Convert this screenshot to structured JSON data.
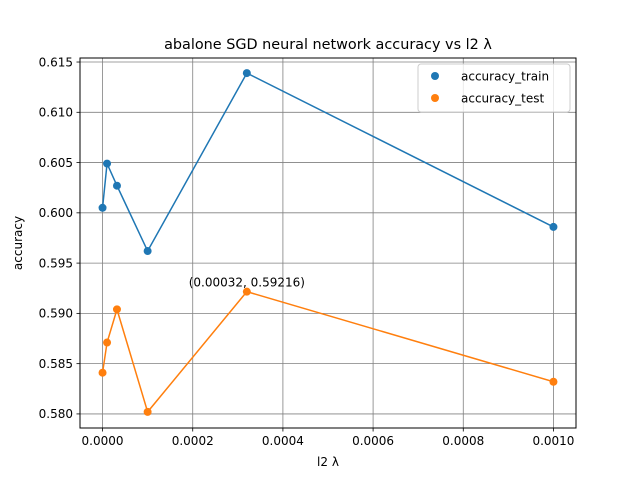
{
  "chart_data": {
    "type": "scatter",
    "title": "abalone SGD neural network accuracy vs l2 λ",
    "xlabel": "l2 λ",
    "ylabel": "accuracy",
    "xlim": [
      -5e-05,
      0.00105
    ],
    "ylim": [
      0.5786,
      0.6154
    ],
    "x_ticks": [
      0.0,
      0.0002,
      0.0004,
      0.0006,
      0.0008,
      0.001
    ],
    "x_tick_labels": [
      "0.0000",
      "0.0002",
      "0.0004",
      "0.0006",
      "0.0008",
      "0.0010"
    ],
    "y_ticks": [
      0.58,
      0.585,
      0.59,
      0.595,
      0.6,
      0.605,
      0.61,
      0.615
    ],
    "y_tick_labels": [
      "0.580",
      "0.585",
      "0.590",
      "0.595",
      "0.600",
      "0.605",
      "0.610",
      "0.615"
    ],
    "grid": true,
    "legend_position": "top-right",
    "series": [
      {
        "name": "accuracy_train",
        "color": "#1f77b4",
        "x": [
          0.0,
          1e-05,
          3.2e-05,
          0.0001,
          0.00032,
          0.001
        ],
        "y": [
          0.6005,
          0.6049,
          0.6027,
          0.5962,
          0.6139,
          0.5986
        ]
      },
      {
        "name": "accuracy_test",
        "color": "#ff7f0e",
        "x": [
          0.0,
          1e-05,
          3.2e-05,
          0.0001,
          0.00032,
          0.001
        ],
        "y": [
          0.5841,
          0.5871,
          0.5904,
          0.5802,
          0.59216,
          0.5832
        ]
      }
    ],
    "annotations": [
      {
        "text": "(0.00032, 0.59216)",
        "x": 0.00032,
        "y": 0.59216
      }
    ]
  }
}
